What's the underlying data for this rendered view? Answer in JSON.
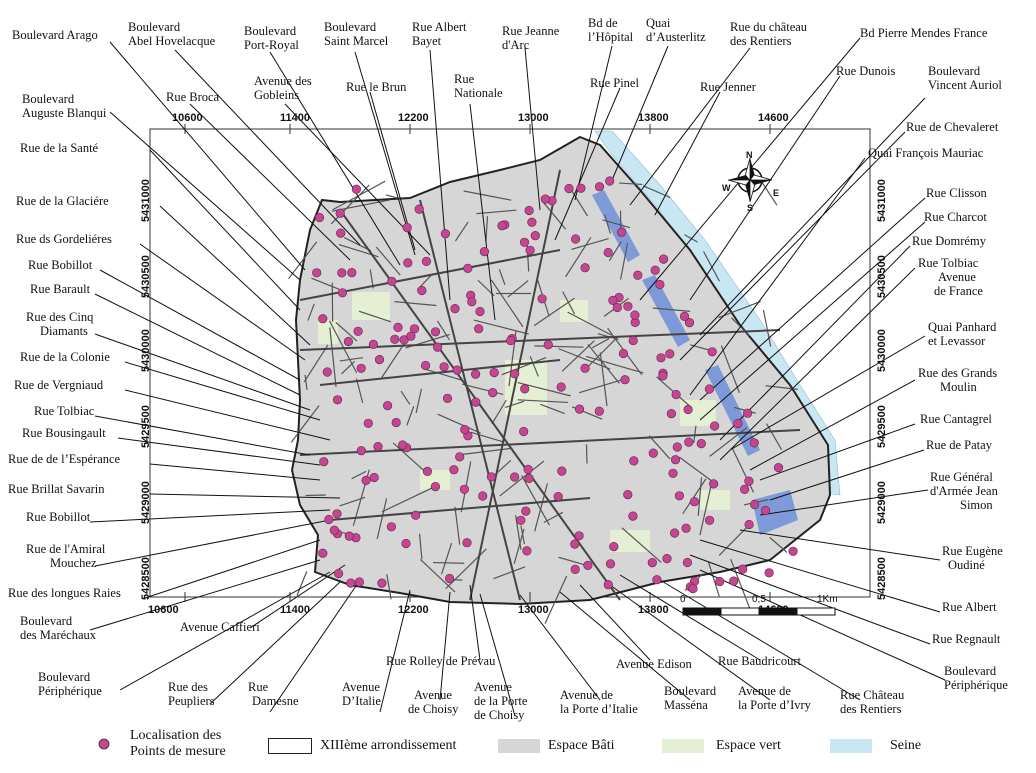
{
  "map": {
    "top_coords": [
      "10600",
      "11400",
      "12200",
      "13000",
      "13800",
      "14600"
    ],
    "bottom_coords": [
      "10600",
      "11400",
      "12200",
      "13000",
      "13800",
      "14600"
    ],
    "left_coords": [
      "5431000",
      "5430500",
      "5430000",
      "5429500",
      "5429000",
      "5428500"
    ],
    "right_coords": [
      "5431000",
      "5430500",
      "5430000",
      "5429500",
      "5429000",
      "5428500"
    ],
    "north_arrow": {
      "n": "N",
      "s": "S",
      "e": "E",
      "w": "W"
    },
    "scale_bar": {
      "start": "0",
      "mid": "0,5",
      "end": "1Km"
    }
  },
  "labels": {
    "l01": "Boulevard Arago",
    "l02a": "Boulevard",
    "l02b": "Abel Hovelacque",
    "l03a": "Boulevard",
    "l03b": "Port-Royal",
    "l04a": "Boulevard",
    "l04b": "Saint Marcel",
    "l05a": "Rue Albert",
    "l05b": "Bayet",
    "l06a": "Rue Jeanne",
    "l06b": "d'Arc",
    "l07a": "Bd de",
    "l07b": "l’Hôpital",
    "l08a": "Quai",
    "l08b": "d’Austerlitz",
    "l09a": "Rue du château",
    "l09b": "des Rentiers",
    "l10": "Bd Pierre Mendes France",
    "l11a": "Avenue des",
    "l11b": "Gobleins",
    "l12": "Rue le Brun",
    "l13a": "Rue",
    "l13b": "Nationale",
    "l14": "Rue Pinel",
    "l15": "Rue Jenner",
    "l16": "Rue Dunois",
    "l17a": "Boulevard",
    "l17b": "Vincent Auriol",
    "l18a": "Boulevard",
    "l18b": "Auguste Blanqui",
    "l19": "Rue Broca",
    "l20": "Rue de Chevaleret",
    "l21": "Rue de la Santé",
    "l22": "Quai François Mauriac",
    "l23": "Rue de la Glaciére",
    "l24": "Rue Clisson",
    "l25": "Rue Charcot",
    "l26": "Rue ds Gordeliéres",
    "l27": "Rue Domrémy",
    "l28": "Rue Bobillot",
    "l29a": "Rue Tolbiac",
    "l29b": "Avenue",
    "l29c": "de France",
    "l30": "Rue Barault",
    "l31a": "Rue des Cinq",
    "l31b": "Diamants",
    "l32a": "Quai Panhard",
    "l32b": "et Levassor",
    "l33": "Rue de la Colonie",
    "l34a": "Rue des   Grands",
    "l34b": "Moulin",
    "l35": "Rue de Vergniaud",
    "l36": "Rue Tolbiac",
    "l37": "Rue Cantagrel",
    "l38": "Rue Bousingault",
    "l39": "Rue de Patay",
    "l40": "Rue de de l’Espérance",
    "l41a": "Rue Général",
    "l41b": "d'Armée Jean",
    "l41c": "Simon",
    "l42": "Rue Brillat Savarin",
    "l43": "Rue Bobillot",
    "l44a": "Rue de l'Amiral",
    "l44b": "Mouchez",
    "l45a": "Rue Eugène",
    "l45b": "Oudiné",
    "l46": "Rue des longues Raies",
    "l47": "Rue  Albert",
    "l48a": "Boulevard",
    "l48b": "des Maréchaux",
    "l49": "Avenue Caffieri",
    "l50": "Rue Regnault",
    "l51a": "Boulevard",
    "l51b": "Périphérique",
    "l52": "Rue Rolley de Prévau",
    "l53": "Avenue Edison",
    "l54": "Rue Baudricourt",
    "l55a": "Boulevard",
    "l55b": "Périphérique",
    "l56a": "Rue",
    "l56b": "Damesne",
    "l57a": "Rue   des",
    "l57b": "Peupliers",
    "l58a": "Avenue",
    "l58b": "D’Italie",
    "l59a": "Avenue",
    "l59b": "de Choisy",
    "l60a": "Avenue",
    "l60b": "de la Porte",
    "l60c": "de Choisy",
    "l61a": "Avenue de",
    "l61b": "la Porte d’Italie",
    "l62a": "Boulevard",
    "l62b": "Masséna",
    "l63a": "Avenue de",
    "l63b": "la Porte d’Ivry",
    "l64a": "Rue  Château",
    "l64b": "des Rentiers"
  },
  "legend": {
    "points_a": "Localisation des",
    "points_b": "Points de mesure",
    "arrondissement": "XIIIème arrondissement",
    "bati": "Espace Bâti",
    "vert": "Espace vert",
    "seine": "Seine"
  },
  "colors": {
    "point": "#c2478f",
    "built": "#d6d6d6",
    "green": "#e4efd4",
    "seine": "#c9e6f3",
    "rail": "#6f8fd8"
  }
}
